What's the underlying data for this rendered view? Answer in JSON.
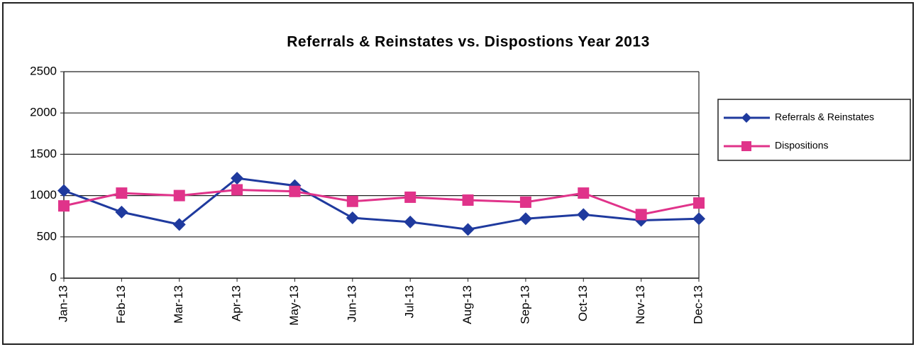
{
  "chart_data": {
    "type": "line",
    "title": "Referrals & Reinstates vs. Dispostions  Year 2013",
    "categories": [
      "Jan-13",
      "Feb-13",
      "Mar-13",
      "Apr-13",
      "May-13",
      "Jun-13",
      "Jul-13",
      "Aug-13",
      "Sep-13",
      "Oct-13",
      "Nov-13",
      "Dec-13"
    ],
    "series": [
      {
        "name": "Referrals & Reinstates",
        "color": "#1f3a9e",
        "marker": "diamond",
        "values": [
          1060,
          800,
          650,
          1210,
          1120,
          730,
          680,
          590,
          720,
          770,
          700,
          720
        ]
      },
      {
        "name": "Dispositions",
        "color": "#e0338a",
        "marker": "square",
        "values": [
          875,
          1030,
          1000,
          1070,
          1050,
          930,
          980,
          945,
          920,
          1030,
          770,
          910
        ]
      }
    ],
    "ylim": [
      0,
      2500
    ],
    "yticks": [
      0,
      500,
      1000,
      1500,
      2000,
      2500
    ],
    "grid": true,
    "legend": "right"
  }
}
